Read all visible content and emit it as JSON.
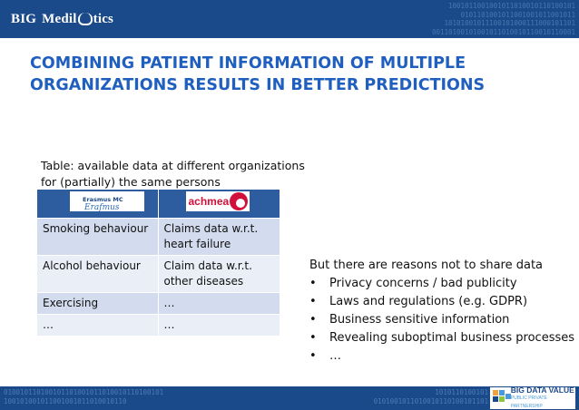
{
  "header": {
    "logo_prefix": "BIG",
    "logo_suffix": "Medil",
    "logo_tail": "tics",
    "binary_text": "1001011001001011010010110100101\n0101101001011001001011001011\n10101001011100101000111000101101\n00110100101001011010010110010110001"
  },
  "slide": {
    "title_line1": "COMBINING PATIENT INFORMATION OF MULTIPLE",
    "title_line2": "ORGANIZATIONS RESULTS IN BETTER PREDICTIONS"
  },
  "table": {
    "caption": "Table: available data at different organizations for (partially) the same persons",
    "org1": {
      "name": "Erasmus MC",
      "signature": "Erafmus"
    },
    "org2": {
      "name": "achmea"
    },
    "rows": [
      {
        "col1": "Smoking behaviour",
        "col2": "Claims data w.r.t. heart failure"
      },
      {
        "col1": "Alcohol behaviour",
        "col2": "Claim data w.r.t. other diseases"
      },
      {
        "col1": "Exercising",
        "col2": "…"
      },
      {
        "col1": "…",
        "col2": "…"
      }
    ]
  },
  "reasons": {
    "intro": "But there are reasons not to share data",
    "bullet_symbol": "•",
    "items": [
      "Privacy concerns / bad publicity",
      "Laws and regulations (e.g. GDPR)",
      "Business sensitive information",
      "Revealing suboptimal business processes",
      "…"
    ]
  },
  "footer": {
    "binary_left": "010010110100101101001011010010110100101\n100101001011001001011010010110",
    "binary_right": "1010110100101\n0101001011010010110100101101",
    "partner_name": "BIG DATA VALUE",
    "partner_sub": "PUBLIC PRIVATE PARTNERSHIP"
  },
  "colors": {
    "banner": "#1b4a8a",
    "title": "#1f5fbf",
    "table_head": "#2e5d9f",
    "row_dark": "#d3dcee",
    "row_light": "#eaeef7",
    "achmea_red": "#d0103a"
  }
}
